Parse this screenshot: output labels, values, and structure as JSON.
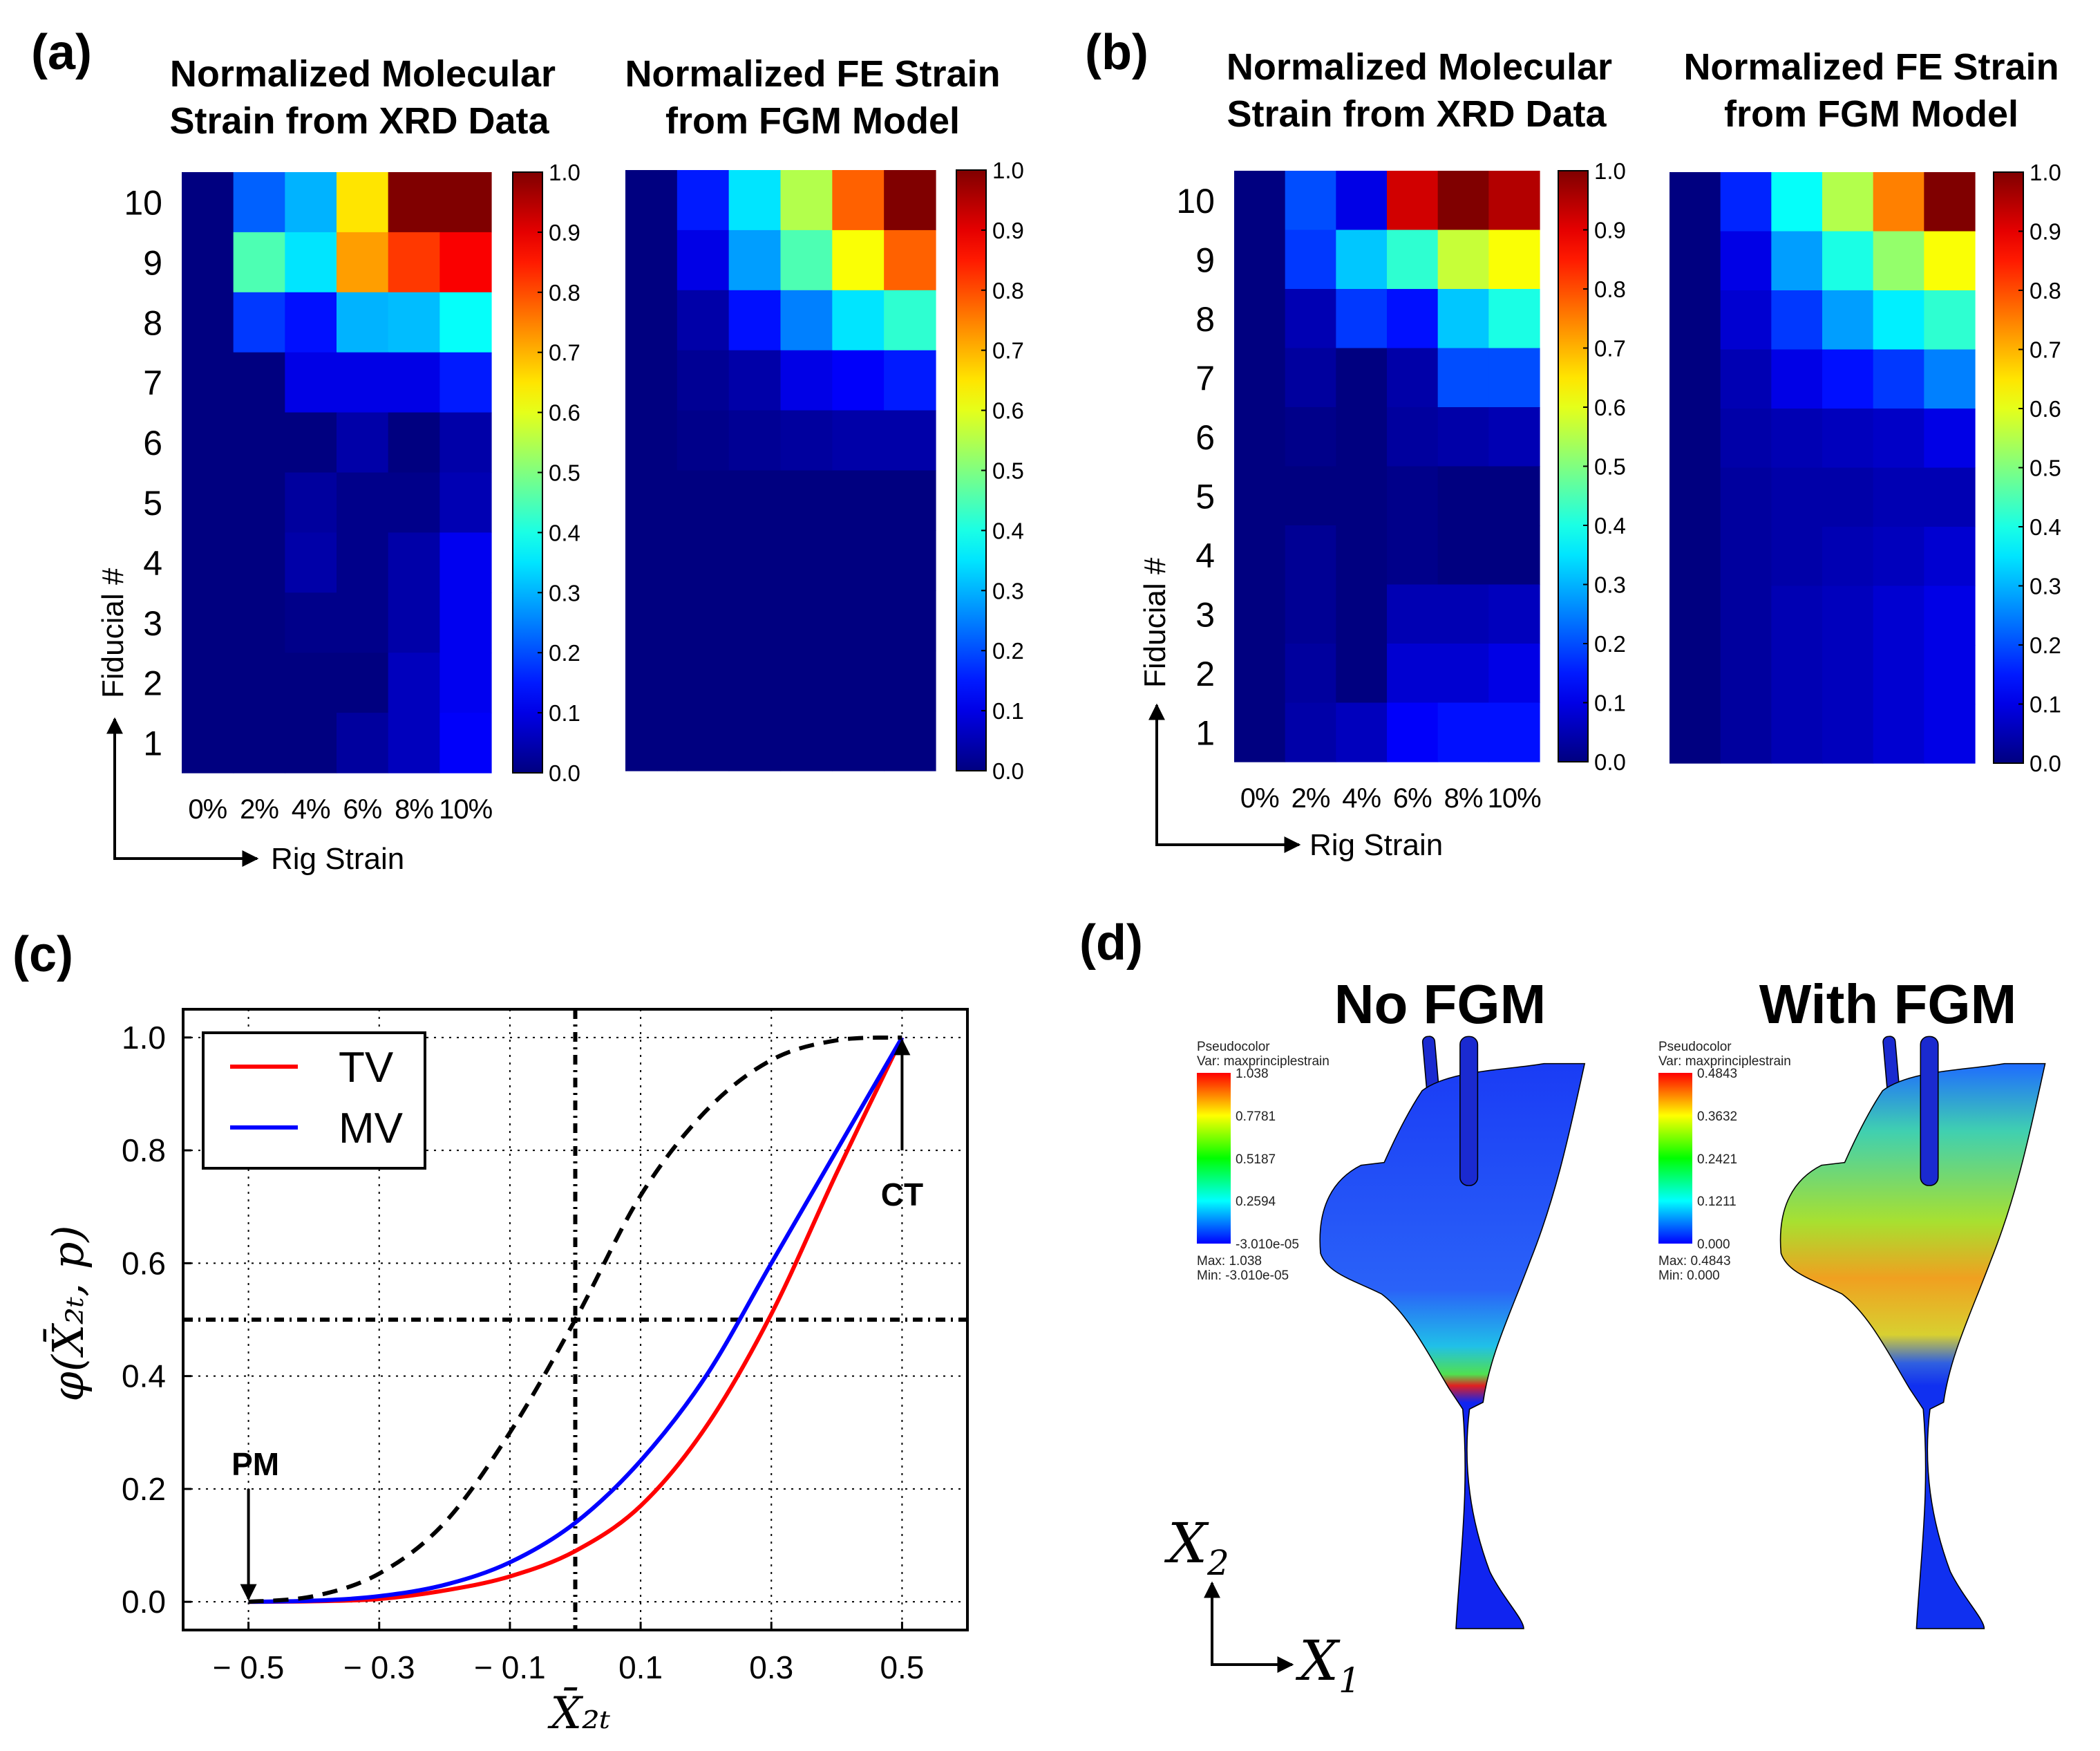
{
  "panels": {
    "a": {
      "label": "(a)",
      "title_xrd": [
        "Normalized Molecular",
        "Strain from XRD Data"
      ],
      "title_fe": [
        "Normalized FE Strain",
        "from FGM Model"
      ],
      "ylabel": "Fiducial #",
      "xlabel": "Rig Strain"
    },
    "b": {
      "label": "(b)",
      "title_xrd": [
        "Normalized Molecular",
        "Strain from XRD Data"
      ],
      "title_fe": [
        "Normalized FE Strain",
        "from FGM Model"
      ],
      "ylabel": "Fiducial #",
      "xlabel": "Rig Strain"
    },
    "c": {
      "label": "(c)"
    },
    "d": {
      "label": "(d)",
      "title_left": "No FGM",
      "title_right": "With FGM",
      "legend_left": {
        "line1": "Pseudocolor",
        "line2": "Var: maxprinciplestrain",
        "ticks": [
          "1.038",
          "0.7781",
          "0.5187",
          "0.2594",
          "-3.010e-05"
        ],
        "max": "Max:  1.038",
        "min": "Min:  -3.010e-05"
      },
      "legend_right": {
        "line1": "Pseudocolor",
        "line2": "Var: maxprinciplestrain",
        "ticks": [
          "0.4843",
          "0.3632",
          "0.2421",
          "0.1211",
          "0.000"
        ],
        "max": "Max:  0.4843",
        "min": "Min:  0.000"
      },
      "axis_vertical": "X",
      "axis_vertical_sub": "2",
      "axis_horizontal": "X",
      "axis_horizontal_sub": "1"
    }
  },
  "chart_data": [
    {
      "type": "heatmap",
      "panel": "a",
      "title": "Normalized Molecular Strain from XRD Data",
      "x_categories": [
        "0%",
        "2%",
        "4%",
        "6%",
        "8%",
        "10%"
      ],
      "y_categories": [
        "10",
        "9",
        "8",
        "7",
        "6",
        "5",
        "4",
        "3",
        "2",
        "1"
      ],
      "xlabel": "Rig Strain",
      "ylabel": "Fiducial #",
      "colormap": "jet",
      "vlim": [
        0,
        1
      ],
      "colorbar_ticks": [
        "0.0",
        "0.1",
        "0.2",
        "0.3",
        "0.4",
        "0.5",
        "0.6",
        "0.7",
        "0.8",
        "0.9",
        "1.0"
      ],
      "values": [
        [
          0,
          0.22,
          0.3,
          0.65,
          1.0,
          1.0
        ],
        [
          0,
          0.45,
          0.35,
          0.72,
          0.82,
          0.88
        ],
        [
          0,
          0.18,
          0.14,
          0.3,
          0.31,
          0.38
        ],
        [
          0,
          0.0,
          0.1,
          0.1,
          0.1,
          0.15
        ],
        [
          0,
          0.0,
          0.0,
          0.04,
          0.0,
          0.04
        ],
        [
          0,
          0.0,
          0.03,
          0.01,
          0.01,
          0.05
        ],
        [
          0,
          0.0,
          0.04,
          0.01,
          0.04,
          0.11
        ],
        [
          0,
          0.0,
          0.01,
          0.01,
          0.04,
          0.11
        ],
        [
          0,
          0.0,
          0.0,
          0.0,
          0.06,
          0.11
        ],
        [
          0,
          0.0,
          0.0,
          0.03,
          0.06,
          0.12
        ]
      ]
    },
    {
      "type": "heatmap",
      "panel": "a",
      "title": "Normalized FE Strain from FGM Model",
      "x_categories": [
        "0%",
        "2%",
        "4%",
        "6%",
        "8%",
        "10%"
      ],
      "y_categories": [
        "10",
        "9",
        "8",
        "7",
        "6",
        "5",
        "4",
        "3",
        "2",
        "1"
      ],
      "colormap": "jet",
      "vlim": [
        0,
        1
      ],
      "colorbar_ticks": [
        "0.0",
        "0.1",
        "0.2",
        "0.3",
        "0.4",
        "0.5",
        "0.6",
        "0.7",
        "0.8",
        "0.9",
        "1.0"
      ],
      "values": [
        [
          0,
          0.15,
          0.35,
          0.55,
          0.78,
          1.0
        ],
        [
          0,
          0.1,
          0.28,
          0.45,
          0.62,
          0.78
        ],
        [
          0,
          0.04,
          0.14,
          0.25,
          0.35,
          0.42
        ],
        [
          0,
          0.02,
          0.04,
          0.1,
          0.12,
          0.15
        ],
        [
          0,
          0.01,
          0.02,
          0.03,
          0.04,
          0.04
        ],
        [
          0,
          0,
          0,
          0,
          0,
          0
        ],
        [
          0,
          0,
          0,
          0,
          0,
          0
        ],
        [
          0,
          0,
          0,
          0,
          0,
          0
        ],
        [
          0,
          0,
          0,
          0,
          0,
          0
        ],
        [
          0,
          0,
          0,
          0,
          0,
          0
        ]
      ]
    },
    {
      "type": "heatmap",
      "panel": "b",
      "title": "Normalized Molecular Strain from XRD Data",
      "x_categories": [
        "0%",
        "2%",
        "4%",
        "6%",
        "8%",
        "10%"
      ],
      "y_categories": [
        "10",
        "9",
        "8",
        "7",
        "6",
        "5",
        "4",
        "3",
        "2",
        "1"
      ],
      "xlabel": "Rig Strain",
      "ylabel": "Fiducial #",
      "colormap": "jet",
      "vlim": [
        0,
        1
      ],
      "colorbar_ticks": [
        "0.0",
        "0.1",
        "0.2",
        "0.3",
        "0.4",
        "0.5",
        "0.6",
        "0.7",
        "0.8",
        "0.9",
        "1.0"
      ],
      "values": [
        [
          0,
          0.2,
          0.1,
          0.92,
          1.0,
          0.95
        ],
        [
          0,
          0.18,
          0.32,
          0.42,
          0.57,
          0.62
        ],
        [
          0,
          0.05,
          0.18,
          0.14,
          0.32,
          0.4
        ],
        [
          0,
          0.03,
          0.0,
          0.04,
          0.2,
          0.2
        ],
        [
          0,
          0.01,
          0.0,
          0.03,
          0.04,
          0.05
        ],
        [
          0,
          0.0,
          0.0,
          0.01,
          0.0,
          0.0
        ],
        [
          0,
          0.02,
          0.0,
          0.01,
          0.0,
          0.0
        ],
        [
          0,
          0.02,
          0.0,
          0.05,
          0.05,
          0.06
        ],
        [
          0,
          0.03,
          0.0,
          0.08,
          0.08,
          0.1
        ],
        [
          0,
          0.04,
          0.06,
          0.12,
          0.14,
          0.14
        ]
      ]
    },
    {
      "type": "heatmap",
      "panel": "b",
      "title": "Normalized FE Strain from FGM Model",
      "x_categories": [
        "0%",
        "2%",
        "4%",
        "6%",
        "8%",
        "10%"
      ],
      "y_categories": [
        "10",
        "9",
        "8",
        "7",
        "6",
        "5",
        "4",
        "3",
        "2",
        "1"
      ],
      "colormap": "jet",
      "vlim": [
        0,
        1
      ],
      "colorbar_ticks": [
        "0.0",
        "0.1",
        "0.2",
        "0.3",
        "0.4",
        "0.5",
        "0.6",
        "0.7",
        "0.8",
        "0.9",
        "1.0"
      ],
      "values": [
        [
          0,
          0.16,
          0.38,
          0.55,
          0.75,
          1.0
        ],
        [
          0,
          0.1,
          0.28,
          0.4,
          0.52,
          0.62
        ],
        [
          0,
          0.08,
          0.18,
          0.28,
          0.36,
          0.42
        ],
        [
          0,
          0.05,
          0.1,
          0.14,
          0.18,
          0.25
        ],
        [
          0,
          0.04,
          0.05,
          0.06,
          0.07,
          0.1
        ],
        [
          0,
          0.03,
          0.04,
          0.04,
          0.05,
          0.05
        ],
        [
          0,
          0.03,
          0.04,
          0.05,
          0.06,
          0.08
        ],
        [
          0,
          0.03,
          0.05,
          0.06,
          0.08,
          0.1
        ],
        [
          0,
          0.03,
          0.05,
          0.06,
          0.08,
          0.1
        ],
        [
          0,
          0.03,
          0.05,
          0.06,
          0.08,
          0.1
        ]
      ]
    },
    {
      "type": "line",
      "panel": "c",
      "xlabel": "X̄₂ₜ",
      "ylabel": "φ(X̄₂ₜ, p)",
      "xlim": [
        -0.6,
        0.6
      ],
      "ylim": [
        -0.05,
        1.05
      ],
      "grid": true,
      "xticks": [
        -0.5,
        -0.3,
        -0.1,
        0.1,
        0.3,
        0.5
      ],
      "xtick_labels": [
        "− 0.5",
        "− 0.3",
        "− 0.1",
        "0.1",
        "0.3",
        "0.5"
      ],
      "yticks": [
        0,
        0.2,
        0.4,
        0.6,
        0.8,
        1.0
      ],
      "ytick_labels": [
        "0.0",
        "0.2",
        "0.4",
        "0.6",
        "0.8",
        "1.0"
      ],
      "legend_position": "top-left",
      "series": [
        {
          "name": "TV",
          "color": "#ff0000",
          "style": "solid",
          "x": [
            -0.5,
            -0.4,
            -0.3,
            -0.2,
            -0.1,
            0,
            0.1,
            0.2,
            0.3,
            0.4,
            0.5
          ],
          "y": [
            0,
            0.001,
            0.005,
            0.02,
            0.045,
            0.09,
            0.17,
            0.31,
            0.51,
            0.76,
            1.0
          ]
        },
        {
          "name": "MV",
          "color": "#0000ff",
          "style": "solid",
          "x": [
            -0.5,
            -0.4,
            -0.3,
            -0.2,
            -0.1,
            0,
            0.1,
            0.2,
            0.3,
            0.4,
            0.5
          ],
          "y": [
            0,
            0.002,
            0.01,
            0.03,
            0.07,
            0.14,
            0.25,
            0.4,
            0.6,
            0.8,
            1.0
          ]
        },
        {
          "name": "",
          "color": "#000000",
          "style": "dashed",
          "x": [
            -0.5,
            -0.4,
            -0.3,
            -0.2,
            -0.1,
            0,
            0.1,
            0.2,
            0.3,
            0.4,
            0.5
          ],
          "y": [
            0,
            0.01,
            0.05,
            0.14,
            0.3,
            0.5,
            0.72,
            0.87,
            0.96,
            0.995,
            1.0
          ]
        }
      ],
      "reference_lines": {
        "x": 0,
        "y": 0.5
      },
      "annotations": [
        {
          "text": "PM",
          "x": -0.5,
          "y": 0.0
        },
        {
          "text": "CT",
          "x": 0.5,
          "y": 1.0
        }
      ]
    }
  ]
}
